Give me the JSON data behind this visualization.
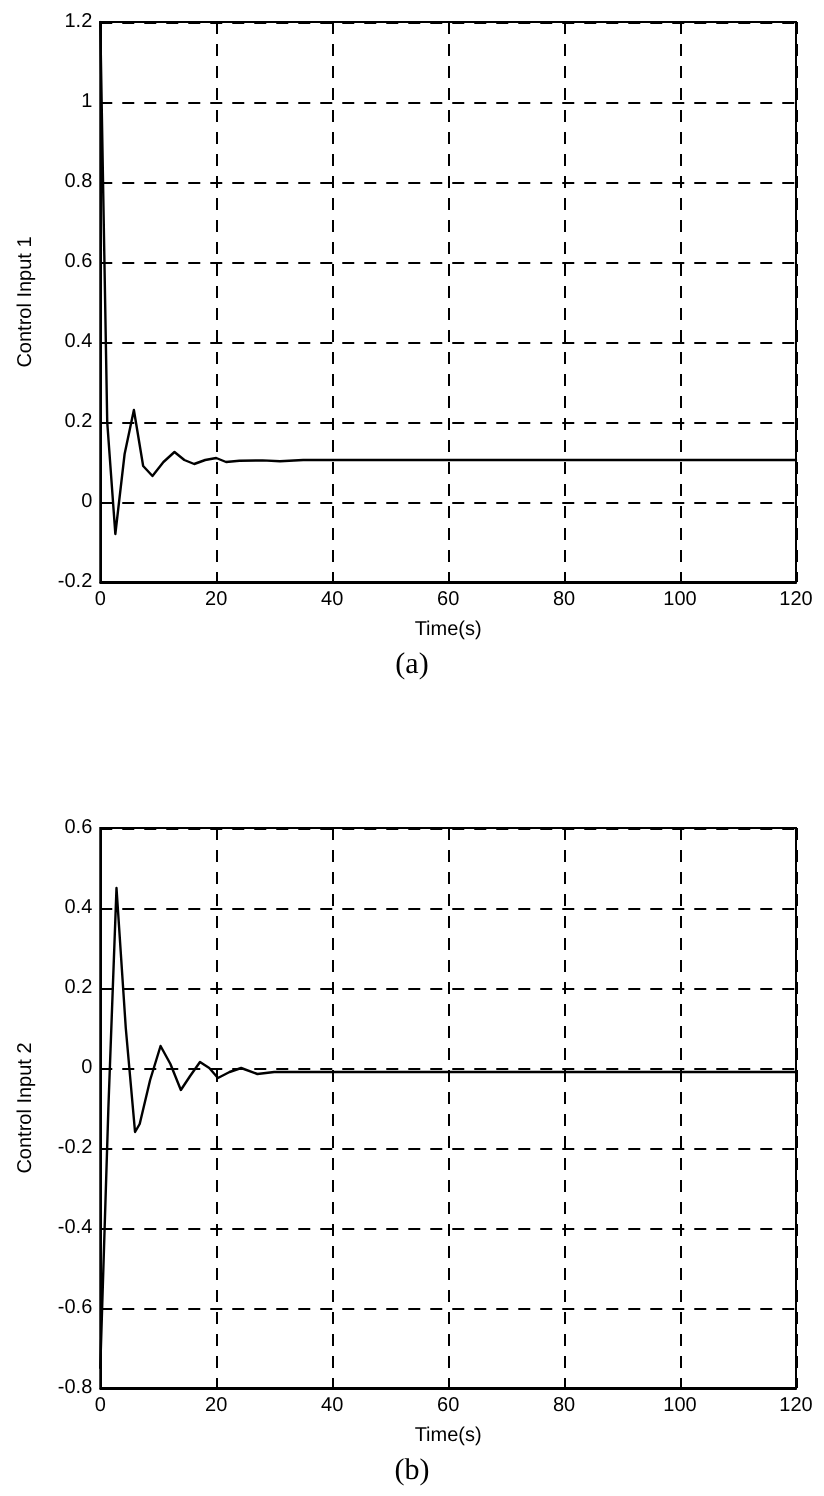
{
  "chart_data": [
    {
      "type": "line",
      "xlabel": "Time(s)",
      "ylabel": "Control Input 1",
      "annotations": [
        "(a)"
      ],
      "xlim": [
        0,
        120
      ],
      "xticks": [
        0,
        20,
        40,
        60,
        80,
        100,
        120
      ],
      "ylim": [
        -0.2,
        1.2
      ],
      "yticks": [
        -0.2,
        0,
        0.2,
        0.4,
        0.6,
        0.8,
        1,
        1.2
      ],
      "grid": true,
      "marker": "none",
      "line_style": "solid",
      "x": [
        0,
        1.2,
        2.6,
        4.2,
        5.8,
        7.4,
        9.0,
        10.9,
        12.8,
        14.5,
        16.2,
        18.1,
        20,
        21.7,
        24,
        28,
        31,
        35,
        40,
        60,
        80,
        100,
        120
      ],
      "series": [
        {
          "color": "#000000",
          "values": [
            1.2,
            0.2,
            -0.08,
            0.12,
            0.23,
            0.09,
            0.065,
            0.1,
            0.125,
            0.105,
            0.095,
            0.105,
            0.11,
            0.1,
            0.103,
            0.104,
            0.102,
            0.105,
            0.105,
            0.105,
            0.105,
            0.105,
            0.105
          ]
        }
      ]
    },
    {
      "type": "line",
      "xlabel": "Time(s)",
      "ylabel": "Control Input 2",
      "annotations": [
        "(b)"
      ],
      "xlim": [
        0,
        120
      ],
      "xticks": [
        0,
        20,
        40,
        60,
        80,
        100,
        120
      ],
      "ylim": [
        -0.8,
        0.6
      ],
      "yticks": [
        -0.8,
        -0.6,
        -0.4,
        -0.2,
        0,
        0.2,
        0.4,
        0.6
      ],
      "grid": true,
      "marker": "none",
      "line_style": "solid",
      "x": [
        0,
        1.4,
        2.8,
        4.4,
        6.0,
        6.8,
        8.6,
        10.4,
        12.1,
        13.9,
        15.5,
        17.2,
        18.8,
        20.3,
        22.3,
        24.3,
        27.1,
        30,
        40,
        60,
        80,
        100,
        120
      ],
      "series": [
        {
          "color": "#000000",
          "values": [
            -0.75,
            -0.1,
            0.45,
            0.1,
            -0.16,
            -0.14,
            -0.03,
            0.055,
            0.01,
            -0.055,
            -0.02,
            0.015,
            0.0,
            -0.025,
            -0.01,
            0.0,
            -0.015,
            -0.01,
            -0.01,
            -0.01,
            -0.01,
            -0.01,
            -0.01
          ]
        }
      ]
    }
  ]
}
